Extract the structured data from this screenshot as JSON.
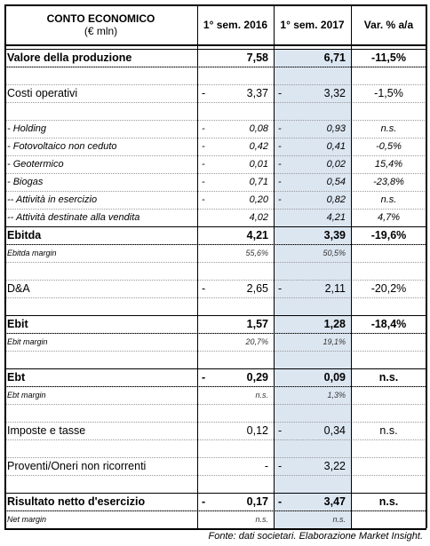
{
  "header": {
    "title": "CONTO ECONOMICO",
    "unit": "(€ mln)",
    "columns": [
      "1° sem. 2016",
      "1° sem. 2017",
      "Var. % a/a"
    ]
  },
  "table": {
    "rows": [
      {
        "kind": "bold",
        "label": "Valore della produzione",
        "value_2016": "7,58",
        "value_2017": "6,71",
        "change": "-11,5%"
      },
      {
        "kind": "blank"
      },
      {
        "kind": "normal",
        "label": "Costi operativi",
        "sign_2016": "-",
        "value_2016": "3,37",
        "sign_2017": "-",
        "value_2017": "3,32",
        "change": "-1,5%"
      },
      {
        "kind": "blank"
      },
      {
        "kind": "sub",
        "label": "- Holding",
        "sign_2016": "-",
        "value_2016": "0,08",
        "sign_2017": "-",
        "value_2017": "0,93",
        "change": "n.s."
      },
      {
        "kind": "sub",
        "label": "- Fotovoltaico non ceduto",
        "sign_2016": "-",
        "value_2016": "0,42",
        "sign_2017": "-",
        "value_2017": "0,41",
        "change": "-0,5%"
      },
      {
        "kind": "sub",
        "label": "- Geotermico",
        "sign_2016": "-",
        "value_2016": "0,01",
        "sign_2017": "-",
        "value_2017": "0,02",
        "change": "15,4%"
      },
      {
        "kind": "sub",
        "label": "- Biogas",
        "sign_2016": "-",
        "value_2016": "0,71",
        "sign_2017": "-",
        "value_2017": "0,54",
        "change": "-23,8%"
      },
      {
        "kind": "sub",
        "label": "-- Attività in esercizio",
        "sign_2016": "-",
        "value_2016": "0,20",
        "sign_2017": "-",
        "value_2017": "0,82",
        "change": "n.s."
      },
      {
        "kind": "sub",
        "label": "-- Attività destinate alla vendita",
        "value_2016": "4,02",
        "value_2017": "4,21",
        "change": "4,7%"
      },
      {
        "kind": "bold",
        "label": "Ebitda",
        "value_2016": "4,21",
        "value_2017": "3,39",
        "change": "-19,6%"
      },
      {
        "kind": "margin",
        "label": "Ebitda margin",
        "value_2016": "55,6%",
        "value_2017": "50,5%"
      },
      {
        "kind": "blank"
      },
      {
        "kind": "normal",
        "label": "D&A",
        "sign_2016": "-",
        "value_2016": "2,65",
        "sign_2017": "-",
        "value_2017": "2,11",
        "change": "-20,2%"
      },
      {
        "kind": "blank"
      },
      {
        "kind": "bold",
        "label": "Ebit",
        "value_2016": "1,57",
        "value_2017": "1,28",
        "change": "-18,4%"
      },
      {
        "kind": "margin",
        "label": "Ebit margin",
        "value_2016": "20,7%",
        "value_2017": "19,1%"
      },
      {
        "kind": "blank"
      },
      {
        "kind": "bold",
        "label": "Ebt",
        "sign_2016": "-",
        "value_2016": "0,29",
        "value_2017": "0,09",
        "change": "n.s."
      },
      {
        "kind": "margin",
        "label": "Ebt margin",
        "value_2016": "n.s.",
        "value_2017": "1,3%"
      },
      {
        "kind": "blank"
      },
      {
        "kind": "normal",
        "label": "Imposte e tasse",
        "value_2016": "0,12",
        "sign_2017": "-",
        "value_2017": "0,34",
        "change": "n.s."
      },
      {
        "kind": "blank"
      },
      {
        "kind": "normal",
        "label": "Proventi/Oneri non ricorrenti",
        "value_2016": "-",
        "sign_2017": "-",
        "value_2017": "3,22"
      },
      {
        "kind": "blank"
      },
      {
        "kind": "bold",
        "label": "Risultato netto d'esercizio",
        "sign_2016": "-",
        "value_2016": "0,17",
        "sign_2017": "-",
        "value_2017": "3,47",
        "change": "n.s."
      },
      {
        "kind": "margin",
        "label": "Net margin",
        "value_2016": "n.s.",
        "value_2017": "n.s."
      }
    ]
  },
  "footer": "Fonte: dati societari. Elaborazione Market Insight."
}
